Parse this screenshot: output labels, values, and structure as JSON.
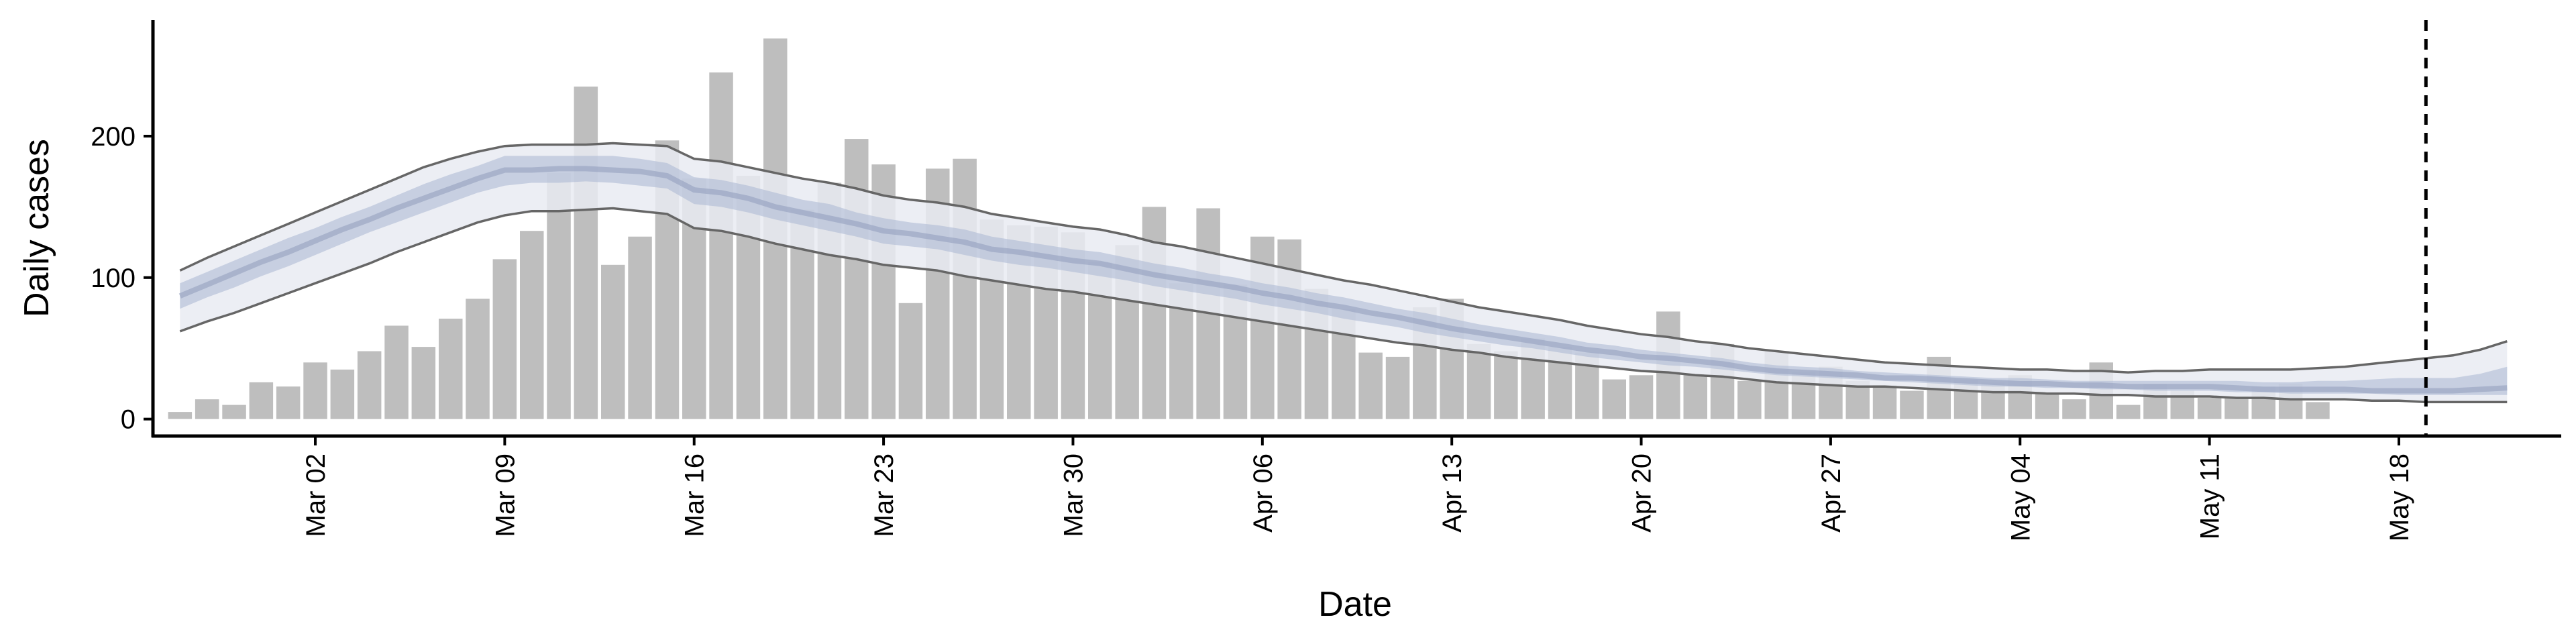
{
  "chart_data": {
    "type": "bar",
    "xlabel": "Date",
    "ylabel": "Daily cases",
    "x_start": "2020-02-26",
    "xlim": [
      "2020-02-25",
      "2020-05-24"
    ],
    "ylim": [
      -12,
      282
    ],
    "x_ticks": [
      {
        "date": "2020-03-02",
        "label": "Mar 02"
      },
      {
        "date": "2020-03-09",
        "label": "Mar 09"
      },
      {
        "date": "2020-03-16",
        "label": "Mar 16"
      },
      {
        "date": "2020-03-23",
        "label": "Mar 23"
      },
      {
        "date": "2020-03-30",
        "label": "Mar 30"
      },
      {
        "date": "2020-04-06",
        "label": "Apr 06"
      },
      {
        "date": "2020-04-13",
        "label": "Apr 13"
      },
      {
        "date": "2020-04-20",
        "label": "Apr 20"
      },
      {
        "date": "2020-04-27",
        "label": "Apr 27"
      },
      {
        "date": "2020-05-04",
        "label": "May 04"
      },
      {
        "date": "2020-05-11",
        "label": "May 11"
      },
      {
        "date": "2020-05-18",
        "label": "May 18"
      }
    ],
    "y_ticks": [
      {
        "value": 0,
        "label": "0"
      },
      {
        "value": 100,
        "label": "100"
      },
      {
        "value": 200,
        "label": "200"
      }
    ],
    "vline_date": "2020-05-19",
    "series": [
      {
        "type": "bar",
        "color": "#bebebe",
        "values": [
          5,
          14,
          10,
          26,
          23,
          40,
          35,
          48,
          66,
          51,
          71,
          85,
          113,
          133,
          174,
          235,
          109,
          129,
          197,
          170,
          245,
          172,
          269,
          148,
          167,
          198,
          180,
          82,
          177,
          184,
          141,
          137,
          136,
          132,
          111,
          123,
          150,
          96,
          149,
          95,
          129,
          127,
          92,
          78,
          47,
          44,
          79,
          85,
          53,
          48,
          57,
          51,
          47,
          28,
          31,
          76,
          31,
          53,
          27,
          48,
          33,
          37,
          27,
          24,
          20,
          44,
          28,
          26,
          31,
          18,
          14,
          40,
          10,
          25,
          20,
          15,
          16,
          23,
          25,
          12
        ]
      },
      {
        "type": "band",
        "start": "2020-02-26",
        "median": [
          87,
          95,
          103,
          111,
          118,
          126,
          134,
          141,
          149,
          156,
          163,
          170,
          176,
          176,
          177,
          177,
          176,
          175,
          172,
          162,
          160,
          156,
          150,
          146,
          142,
          138,
          133,
          131,
          128,
          125,
          120,
          118,
          115,
          112,
          110,
          106,
          102,
          99,
          96,
          93,
          89,
          86,
          82,
          79,
          75,
          72,
          68,
          64,
          61,
          58,
          55,
          52,
          49,
          47,
          44,
          43,
          41,
          39,
          36,
          34,
          33,
          32,
          31,
          29,
          29,
          28,
          27,
          26,
          25,
          25,
          24,
          24,
          23,
          23,
          23,
          23,
          22,
          21,
          21,
          21,
          21,
          20,
          20,
          20,
          20,
          21,
          22
        ],
        "inner_lower": [
          78,
          86,
          93,
          101,
          108,
          116,
          124,
          132,
          139,
          146,
          153,
          160,
          165,
          167,
          167,
          168,
          167,
          165,
          163,
          152,
          150,
          146,
          141,
          137,
          133,
          129,
          124,
          122,
          120,
          116,
          112,
          109,
          107,
          104,
          101,
          98,
          94,
          91,
          88,
          85,
          81,
          78,
          75,
          71,
          68,
          65,
          61,
          58,
          55,
          52,
          50,
          47,
          44,
          42,
          40,
          38,
          37,
          35,
          33,
          31,
          30,
          29,
          28,
          27,
          26,
          25,
          24,
          23,
          23,
          22,
          22,
          21,
          21,
          20,
          20,
          20,
          19,
          19,
          18,
          18,
          18,
          18,
          17,
          17,
          17,
          17,
          17
        ],
        "inner_upper": [
          96,
          104,
          112,
          120,
          128,
          135,
          143,
          150,
          158,
          166,
          173,
          179,
          186,
          186,
          186,
          186,
          186,
          184,
          181,
          171,
          169,
          165,
          160,
          155,
          152,
          146,
          142,
          139,
          137,
          134,
          129,
          126,
          123,
          120,
          118,
          114,
          110,
          107,
          103,
          100,
          96,
          93,
          89,
          86,
          82,
          78,
          75,
          71,
          67,
          64,
          61,
          58,
          54,
          52,
          49,
          47,
          45,
          43,
          40,
          38,
          37,
          36,
          34,
          33,
          32,
          31,
          30,
          29,
          29,
          28,
          27,
          27,
          27,
          27,
          27,
          27,
          27,
          26,
          26,
          27,
          27,
          28,
          29,
          29,
          29,
          32,
          37
        ],
        "outer_lower": [
          62,
          69,
          75,
          82,
          89,
          96,
          103,
          110,
          118,
          125,
          132,
          139,
          144,
          147,
          147,
          148,
          149,
          147,
          145,
          135,
          133,
          129,
          124,
          120,
          116,
          113,
          109,
          107,
          105,
          101,
          98,
          95,
          92,
          90,
          87,
          84,
          81,
          78,
          75,
          72,
          69,
          66,
          63,
          60,
          57,
          54,
          52,
          49,
          47,
          44,
          42,
          40,
          38,
          36,
          34,
          33,
          31,
          30,
          28,
          26,
          25,
          24,
          23,
          23,
          22,
          21,
          20,
          19,
          19,
          18,
          18,
          17,
          17,
          16,
          16,
          16,
          15,
          15,
          14,
          14,
          14,
          13,
          13,
          12,
          12,
          12,
          12
        ],
        "outer_upper": [
          105,
          114,
          122,
          130,
          138,
          146,
          154,
          162,
          170,
          178,
          184,
          189,
          193,
          194,
          194,
          194,
          195,
          194,
          193,
          184,
          182,
          178,
          174,
          170,
          167,
          163,
          158,
          155,
          153,
          150,
          145,
          142,
          139,
          136,
          134,
          130,
          125,
          122,
          118,
          114,
          110,
          106,
          102,
          98,
          95,
          91,
          87,
          83,
          79,
          76,
          73,
          70,
          66,
          63,
          60,
          58,
          55,
          53,
          50,
          48,
          46,
          44,
          42,
          40,
          39,
          38,
          37,
          36,
          35,
          35,
          34,
          34,
          33,
          34,
          34,
          35,
          35,
          35,
          35,
          36,
          37,
          39,
          41,
          43,
          45,
          49,
          55
        ],
        "band_color": "#e9ebf2",
        "inner_color": "#aab6d2",
        "median_color": "#8f9cbc",
        "bound_color": "#666666"
      }
    ]
  }
}
